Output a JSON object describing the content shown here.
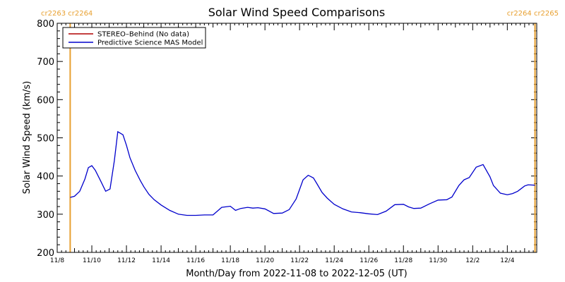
{
  "chart_data": {
    "type": "line",
    "title": "Solar Wind Speed Comparisons",
    "xlabel": "Month/Day from 2022-11-08 to 2022-12-05 (UT)",
    "ylabel": "Solar Wind Speed (km/s)",
    "xlim_days": [
      0,
      27.7
    ],
    "ylim": [
      200,
      800
    ],
    "x_ticks": [
      {
        "day": 0,
        "label": "11/8"
      },
      {
        "day": 2,
        "label": "11/10"
      },
      {
        "day": 4,
        "label": "11/12"
      },
      {
        "day": 6,
        "label": "11/14"
      },
      {
        "day": 8,
        "label": "11/16"
      },
      {
        "day": 10,
        "label": "11/18"
      },
      {
        "day": 12,
        "label": "11/20"
      },
      {
        "day": 14,
        "label": "11/22"
      },
      {
        "day": 16,
        "label": "11/24"
      },
      {
        "day": 18,
        "label": "11/26"
      },
      {
        "day": 20,
        "label": "11/28"
      },
      {
        "day": 22,
        "label": "11/30"
      },
      {
        "day": 24,
        "label": "12/2"
      },
      {
        "day": 26,
        "label": "12/4"
      }
    ],
    "y_ticks": [
      200,
      300,
      400,
      500,
      600,
      700,
      800
    ],
    "carrington_markers": [
      {
        "day": 0.75,
        "label": "cr2263 cr2264",
        "side": "left"
      },
      {
        "day": 27.6,
        "label": "cr2264 cr2265",
        "side": "right"
      }
    ],
    "legend": [
      {
        "label": "STEREO–Behind (No data)",
        "color": "#b00000"
      },
      {
        "label": "Predictive Science MAS Model",
        "color": "#0000cc"
      }
    ],
    "legend_position": "top-left",
    "series": [
      {
        "name": "Predictive Science MAS Model",
        "color": "#0000cc",
        "x_days": [
          0.75,
          1.0,
          1.3,
          1.6,
          1.8,
          2.0,
          2.2,
          2.5,
          2.8,
          3.05,
          3.3,
          3.5,
          3.8,
          4.0,
          4.2,
          4.5,
          4.8,
          5.0,
          5.3,
          5.6,
          6.0,
          6.5,
          7.0,
          7.5,
          8.0,
          8.5,
          9.0,
          9.5,
          10.0,
          10.3,
          10.6,
          11.0,
          11.3,
          11.6,
          12.0,
          12.5,
          13.0,
          13.4,
          13.8,
          14.2,
          14.5,
          14.8,
          15.0,
          15.3,
          15.6,
          16.0,
          16.5,
          17.0,
          17.5,
          18.0,
          18.5,
          19.0,
          19.5,
          20.0,
          20.3,
          20.6,
          21.0,
          21.5,
          22.0,
          22.5,
          22.8,
          23.2,
          23.5,
          23.8,
          24.2,
          24.6,
          25.0,
          25.2,
          25.6,
          26.0,
          26.3,
          26.6,
          27.0,
          27.2,
          27.6
        ],
        "values": [
          344,
          347,
          360,
          392,
          422,
          427,
          415,
          388,
          360,
          366,
          440,
          516,
          508,
          480,
          448,
          415,
          388,
          372,
          352,
          338,
          324,
          310,
          300,
          297,
          297,
          298,
          298,
          318,
          321,
          310,
          315,
          318,
          316,
          317,
          314,
          302,
          303,
          312,
          340,
          390,
          402,
          395,
          380,
          357,
          342,
          326,
          314,
          306,
          304,
          301,
          299,
          308,
          325,
          326,
          319,
          315,
          316,
          327,
          337,
          338,
          345,
          375,
          390,
          396,
          423,
          430,
          398,
          375,
          355,
          351,
          354,
          360,
          374,
          377,
          376
        ]
      }
    ]
  }
}
